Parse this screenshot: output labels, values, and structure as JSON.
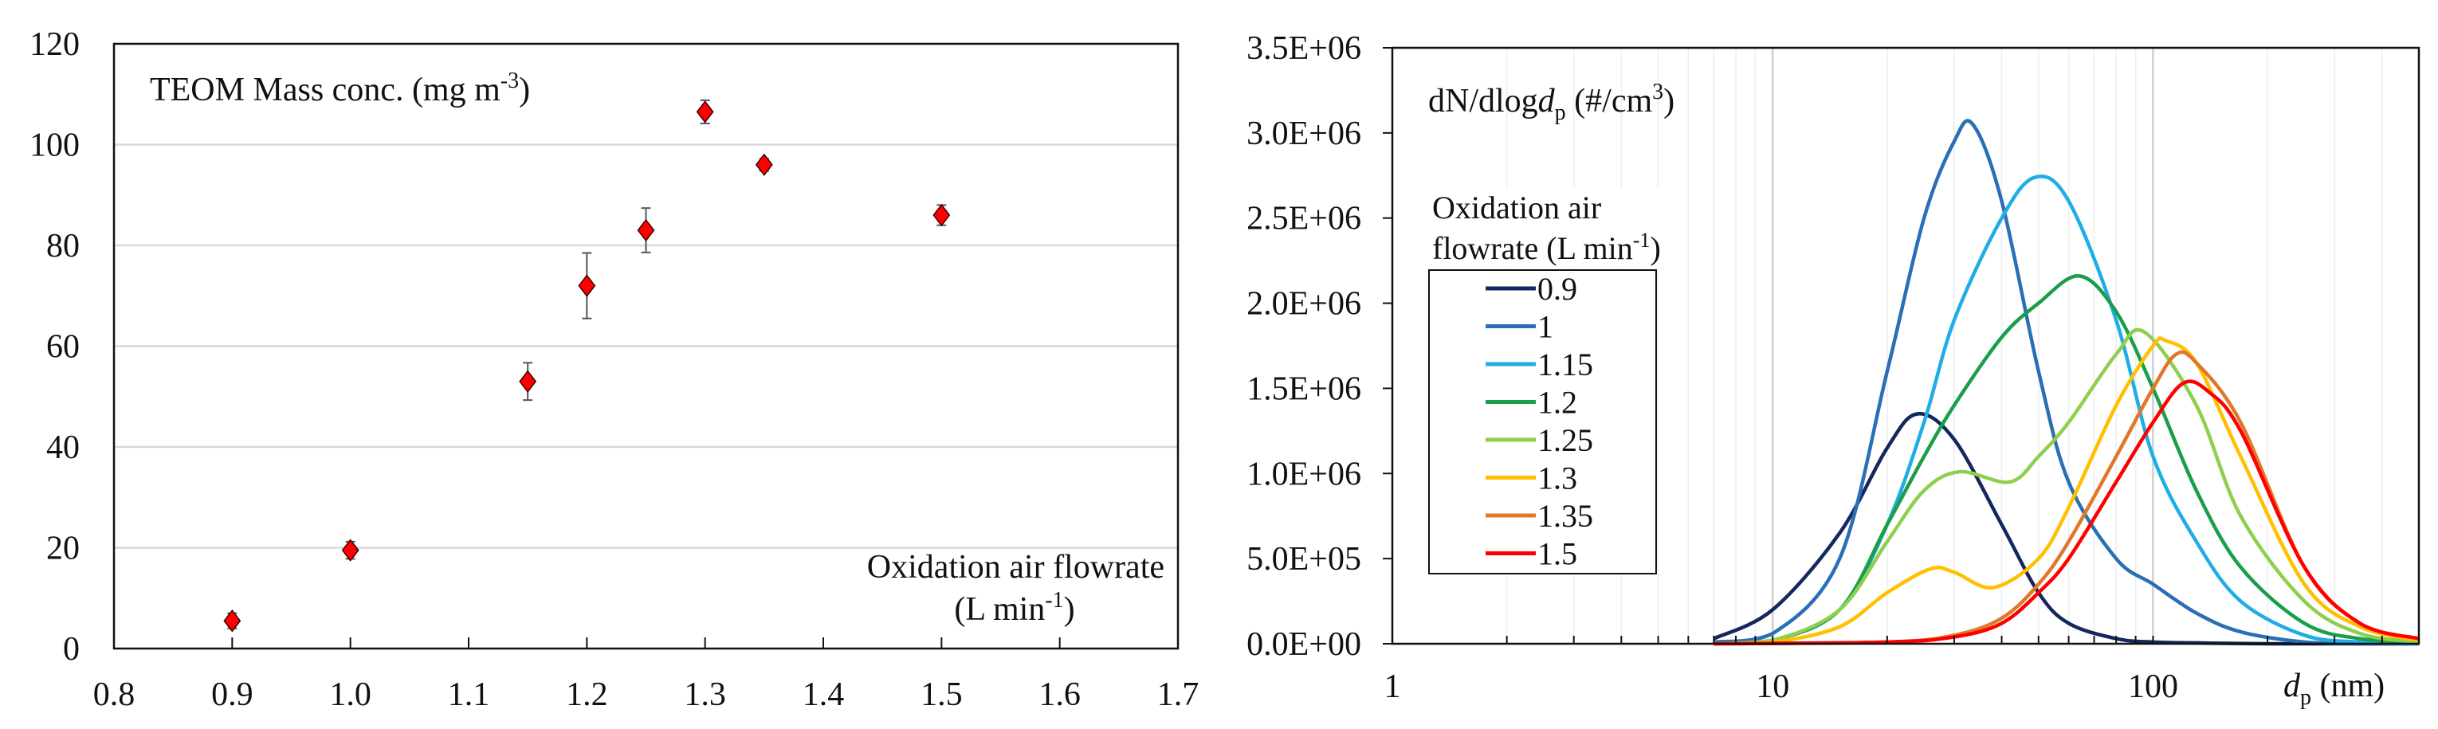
{
  "chart_data": [
    {
      "type": "scatter",
      "title": "TEOM Mass conc. (mg m-3)",
      "title_parts": {
        "main": "TEOM Mass conc. (mg m",
        "sup": "-3",
        "close": ")"
      },
      "xlabel_line1": "Oxidation air flowrate",
      "xlabel_line2": {
        "main": "(L min",
        "sup": "-1",
        "close": ")"
      },
      "xlim": [
        0.8,
        1.7
      ],
      "ylim": [
        0,
        120
      ],
      "xticks": [
        "0.8",
        "0.9",
        "1.0",
        "1.1",
        "1.2",
        "1.3",
        "1.4",
        "1.5",
        "1.6",
        "1.7"
      ],
      "yticks": [
        "0",
        "20",
        "40",
        "60",
        "80",
        "100",
        "120"
      ],
      "grid": "horizontal",
      "marker_color": "#ff0000",
      "points": [
        {
          "x": 0.9,
          "y": 5.5,
          "err": 1.5
        },
        {
          "x": 1.0,
          "y": 19.5,
          "err": 1.7
        },
        {
          "x": 1.15,
          "y": 53.0,
          "err": 3.7
        },
        {
          "x": 1.2,
          "y": 72.0,
          "err": 6.5
        },
        {
          "x": 1.25,
          "y": 83.0,
          "err": 4.4
        },
        {
          "x": 1.3,
          "y": 106.5,
          "err": 2.3
        },
        {
          "x": 1.35,
          "y": 96.0,
          "err": 1.2
        },
        {
          "x": 1.5,
          "y": 86.0,
          "err": 2.0
        }
      ]
    },
    {
      "type": "line",
      "title_parts": {
        "a": "dN/dlog",
        "d": "d",
        "sub": "p",
        "b": " (#/cm",
        "sup": "3",
        "c": ")"
      },
      "xlabel_parts": {
        "d": "d",
        "sub": "p",
        "rest": " (nm)"
      },
      "xscale": "log",
      "xlim": [
        1,
        500
      ],
      "ylim": [
        0,
        3500000
      ],
      "xticks": [
        {
          "v": 1,
          "label": "1"
        },
        {
          "v": 10,
          "label": "10"
        },
        {
          "v": 100,
          "label": "100"
        }
      ],
      "yticks": [
        "0.0E+00",
        "5.0E+05",
        "1.0E+06",
        "1.5E+06",
        "2.0E+06",
        "2.5E+06",
        "3.0E+06",
        "3.5E+06"
      ],
      "legend_title_line1": "Oxidation air",
      "legend_title_line2": {
        "main": "flowrate (L min",
        "sup": "-1",
        "close": ")"
      },
      "legend_position": "left",
      "series": [
        {
          "name": "0.9",
          "color": "#14275e",
          "points": [
            [
              7,
              0.03
            ],
            [
              10,
              0.2
            ],
            [
              15,
              0.65
            ],
            [
              20,
              1.15
            ],
            [
              24,
              1.35
            ],
            [
              30,
              1.2
            ],
            [
              40,
              0.7
            ],
            [
              50,
              0.3
            ],
            [
              60,
              0.12
            ],
            [
              80,
              0.03
            ],
            [
              100,
              0.01
            ],
            [
              130,
              0.005
            ],
            [
              200,
              0
            ],
            [
              500,
              0
            ]
          ]
        },
        {
          "name": "1",
          "color": "#2a6fb5",
          "points": [
            [
              7,
              0.01
            ],
            [
              10,
              0.06
            ],
            [
              15,
              0.5
            ],
            [
              20,
              1.6
            ],
            [
              25,
              2.5
            ],
            [
              30,
              2.95
            ],
            [
              33.6,
              3.05
            ],
            [
              40,
              2.6
            ],
            [
              50,
              1.6
            ],
            [
              60,
              0.95
            ],
            [
              80,
              0.5
            ],
            [
              100,
              0.35
            ],
            [
              130,
              0.18
            ],
            [
              170,
              0.07
            ],
            [
              250,
              0.01
            ],
            [
              350,
              0
            ],
            [
              500,
              0
            ]
          ]
        },
        {
          "name": "1.15",
          "color": "#1fade6",
          "points": [
            [
              7,
              0
            ],
            [
              10,
              0.02
            ],
            [
              15,
              0.2
            ],
            [
              20,
              0.7
            ],
            [
              25,
              1.3
            ],
            [
              30,
              1.9
            ],
            [
              40,
              2.5
            ],
            [
              49,
              2.74
            ],
            [
              60,
              2.6
            ],
            [
              80,
              1.9
            ],
            [
              100,
              1.1
            ],
            [
              130,
              0.6
            ],
            [
              170,
              0.25
            ],
            [
              250,
              0.05
            ],
            [
              350,
              0.01
            ],
            [
              500,
              0
            ]
          ]
        },
        {
          "name": "1.2",
          "color": "#1a9e48",
          "points": [
            [
              7,
              0
            ],
            [
              10,
              0.02
            ],
            [
              15,
              0.2
            ],
            [
              20,
              0.7
            ],
            [
              25,
              1.1
            ],
            [
              30,
              1.4
            ],
            [
              40,
              1.8
            ],
            [
              50,
              2.0
            ],
            [
              64,
              2.16
            ],
            [
              80,
              1.95
            ],
            [
              100,
              1.5
            ],
            [
              130,
              0.9
            ],
            [
              170,
              0.45
            ],
            [
              250,
              0.12
            ],
            [
              350,
              0.03
            ],
            [
              500,
              0.01
            ]
          ]
        },
        {
          "name": "1.25",
          "color": "#8fcf4f",
          "points": [
            [
              7,
              0
            ],
            [
              10,
              0.02
            ],
            [
              15,
              0.2
            ],
            [
              20,
              0.6
            ],
            [
              25,
              0.9
            ],
            [
              31,
              1.01
            ],
            [
              42,
              0.95
            ],
            [
              50,
              1.1
            ],
            [
              60,
              1.3
            ],
            [
              80,
              1.7
            ],
            [
              95,
              1.83
            ],
            [
              130,
              1.4
            ],
            [
              170,
              0.75
            ],
            [
              250,
              0.25
            ],
            [
              350,
              0.06
            ],
            [
              500,
              0.01
            ]
          ]
        },
        {
          "name": "1.3",
          "color": "#ffc000",
          "points": [
            [
              7,
              0
            ],
            [
              10,
              0.01
            ],
            [
              15,
              0.1
            ],
            [
              20,
              0.3
            ],
            [
              26,
              0.44
            ],
            [
              30,
              0.42
            ],
            [
              38,
              0.33
            ],
            [
              50,
              0.5
            ],
            [
              60,
              0.8
            ],
            [
              80,
              1.4
            ],
            [
              100,
              1.75
            ],
            [
              108,
              1.78
            ],
            [
              130,
              1.65
            ],
            [
              170,
              1.1
            ],
            [
              250,
              0.35
            ],
            [
              350,
              0.1
            ],
            [
              500,
              0.02
            ]
          ]
        },
        {
          "name": "1.35",
          "color": "#e0782a",
          "points": [
            [
              7,
              0
            ],
            [
              20,
              0.01
            ],
            [
              30,
              0.05
            ],
            [
              40,
              0.15
            ],
            [
              50,
              0.35
            ],
            [
              60,
              0.6
            ],
            [
              80,
              1.1
            ],
            [
              100,
              1.5
            ],
            [
              115,
              1.7
            ],
            [
              130,
              1.65
            ],
            [
              170,
              1.3
            ],
            [
              250,
              0.45
            ],
            [
              350,
              0.12
            ],
            [
              500,
              0.03
            ]
          ]
        },
        {
          "name": "1.5",
          "color": "#ff0000",
          "points": [
            [
              7,
              0
            ],
            [
              20,
              0.01
            ],
            [
              30,
              0.04
            ],
            [
              40,
              0.12
            ],
            [
              50,
              0.3
            ],
            [
              60,
              0.5
            ],
            [
              80,
              0.95
            ],
            [
              100,
              1.3
            ],
            [
              120,
              1.53
            ],
            [
              140,
              1.48
            ],
            [
              170,
              1.25
            ],
            [
              250,
              0.45
            ],
            [
              350,
              0.12
            ],
            [
              500,
              0.03
            ]
          ]
        }
      ],
      "y_unit_multiplier": 1000000
    }
  ]
}
